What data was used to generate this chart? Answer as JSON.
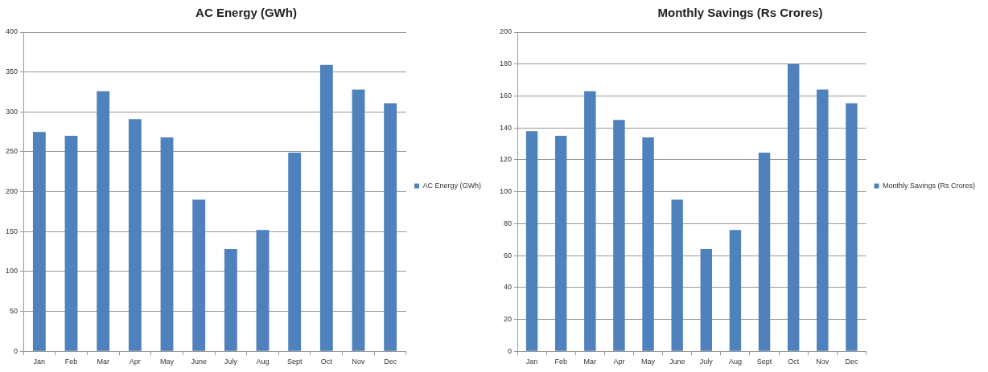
{
  "chart_data": [
    {
      "type": "bar",
      "title": "AC Energy (GWh)",
      "categories": [
        "Jan",
        "Feb",
        "Mar",
        "Apr",
        "May",
        "June",
        "July",
        "Aug",
        "Sept",
        "Oct",
        "Nov",
        "Dec"
      ],
      "series": [
        {
          "name": "AC Energy (GWh)",
          "color": "#4f81bd",
          "values": [
            275,
            270,
            326,
            291,
            268,
            190,
            128,
            152,
            249,
            359,
            328,
            311
          ]
        }
      ],
      "ylim": [
        0,
        400
      ],
      "yticks": [
        0,
        50,
        100,
        150,
        200,
        250,
        300,
        350,
        400
      ],
      "grid": "y",
      "legend": "right"
    },
    {
      "type": "bar",
      "title": "Monthly Savings (Rs Crores)",
      "categories": [
        "Jan",
        "Feb",
        "Mar",
        "Apr",
        "May",
        "June",
        "July",
        "Aug",
        "Sept",
        "Oct",
        "Nov",
        "Dec"
      ],
      "series": [
        {
          "name": "Monthly Savings (Rs Crores)",
          "color": "#4f81bd",
          "values": [
            138,
            135,
            163,
            145,
            134,
            95,
            64,
            76,
            124.5,
            180,
            164,
            155.5
          ]
        }
      ],
      "ylim": [
        0,
        200
      ],
      "yticks": [
        0,
        20,
        40,
        60,
        80,
        100,
        120,
        140,
        160,
        180,
        200
      ],
      "grid": "y",
      "legend": "right"
    }
  ]
}
